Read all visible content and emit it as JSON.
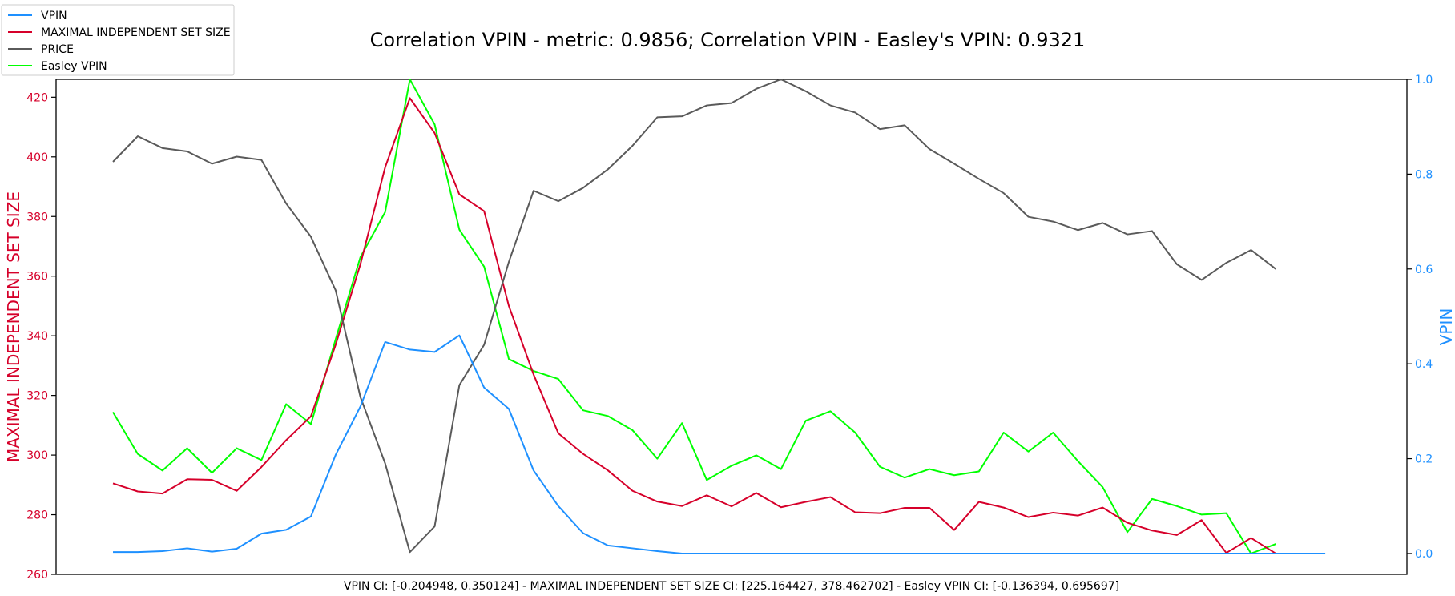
{
  "chart_data": {
    "type": "line",
    "title": "Correlation VPIN - metric: 0.9856; Correlation VPIN - Easley's VPIN: 0.9321",
    "left_axis": {
      "label": "MAXIMAL INDEPENDENT SET SIZE",
      "color": "#d6002a",
      "range": [
        260,
        426
      ],
      "ticks": [
        260,
        280,
        300,
        320,
        340,
        360,
        380,
        400,
        420
      ],
      "tick_labels": [
        "260",
        "280",
        "300",
        "320",
        "340",
        "360",
        "380",
        "400",
        "420"
      ]
    },
    "right_axis": {
      "label": "VPIN",
      "color": "#1e90ff",
      "range": [
        -0.044,
        1.0
      ],
      "ticks": [
        0.0,
        0.2,
        0.4,
        0.6,
        0.8,
        1.0
      ],
      "tick_labels": [
        "0.0",
        "0.2",
        "0.4",
        "0.6",
        "0.8",
        "1.0"
      ]
    },
    "x_range": [
      -2.3,
      52.3
    ],
    "grid": false,
    "legend_placement": "top-left",
    "footer": "VPIN CI: [-0.204948, 0.350124] - MAXIMAL INDEPENDENT SET SIZE CI: [225.164427, 378.462702] - Easley VPIN CI: [-0.136394, 0.695697]",
    "series": [
      {
        "name": "VPIN",
        "color": "#1e90ff",
        "axis": "right",
        "values": [
          0.003,
          0.003,
          0.005,
          0.011,
          0.004,
          0.01,
          0.042,
          0.05,
          0.078,
          0.208,
          0.31,
          0.446,
          0.43,
          0.425,
          0.46,
          0.35,
          0.305,
          0.175,
          0.1,
          0.043,
          0.017,
          0.011,
          0.005,
          0.0,
          0.0,
          0.0,
          0.0,
          0.0,
          0.0,
          0.0,
          0.0,
          0.0,
          0.0,
          0.0,
          0.0,
          0.0,
          0.0,
          0.0,
          0.0,
          0.0,
          0.0,
          0.0,
          0.0,
          0.0,
          0.0,
          0.0,
          0.0,
          0.0,
          0.0,
          0.0
        ]
      },
      {
        "name": "MAXIMAL INDEPENDENT SET SIZE",
        "color": "#d6002a",
        "axis": "left",
        "values": [
          290.5,
          287.8,
          287.1,
          291.9,
          291.7,
          288.0,
          296.0,
          305.0,
          313.0,
          337.0,
          364.0,
          396.5,
          419.7,
          408.0,
          387.4,
          381.8,
          350.0,
          327.0,
          307.3,
          300.4,
          294.9,
          288.0,
          284.4,
          282.9,
          286.5,
          282.8,
          287.3,
          282.5,
          284.3,
          285.9,
          280.8,
          280.5,
          282.3,
          282.3,
          274.9,
          284.3,
          282.4,
          279.2,
          280.7,
          279.7,
          282.4,
          277.3,
          274.7,
          273.2,
          278.2,
          267.2,
          272.2,
          267.0
        ]
      },
      {
        "name": "PRICE",
        "color": "#5a5a5a",
        "axis": "right",
        "values": [
          0.826,
          0.88,
          0.855,
          0.848,
          0.822,
          0.837,
          0.83,
          0.738,
          0.668,
          0.555,
          0.33,
          0.19,
          0.003,
          0.057,
          0.355,
          0.44,
          0.615,
          0.765,
          0.743,
          0.771,
          0.81,
          0.86,
          0.92,
          0.922,
          0.945,
          0.95,
          0.98,
          1.0,
          0.975,
          0.945,
          0.93,
          0.895,
          0.903,
          0.853,
          0.822,
          0.79,
          0.76,
          0.71,
          0.7,
          0.682,
          0.697,
          0.673,
          0.68,
          0.61,
          0.577,
          0.613,
          0.64,
          0.6
        ]
      },
      {
        "name": "Easley VPIN",
        "color": "#00ff00",
        "axis": "right",
        "values": [
          0.298,
          0.21,
          0.175,
          0.222,
          0.17,
          0.222,
          0.197,
          0.315,
          0.273,
          0.452,
          0.625,
          0.72,
          1.0,
          0.905,
          0.683,
          0.605,
          0.41,
          0.385,
          0.368,
          0.302,
          0.29,
          0.26,
          0.2,
          0.275,
          0.155,
          0.185,
          0.207,
          0.178,
          0.28,
          0.3,
          0.255,
          0.183,
          0.16,
          0.178,
          0.165,
          0.173,
          0.255,
          0.215,
          0.255,
          0.195,
          0.14,
          0.045,
          0.115,
          0.1,
          0.082,
          0.085,
          0.0,
          0.02
        ]
      }
    ]
  }
}
